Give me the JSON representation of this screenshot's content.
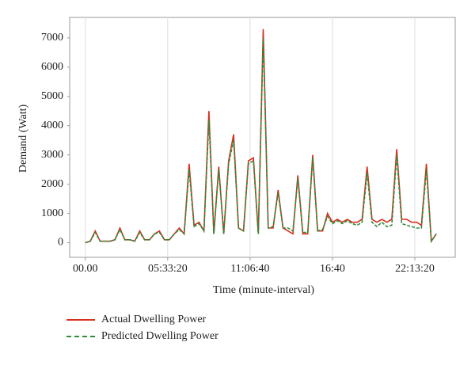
{
  "chart_data": {
    "type": "line",
    "x_label": "Time (minute-interval)",
    "y_label": "Demand (Watt)",
    "x": [
      0,
      1200,
      2400,
      3600,
      4800,
      6000,
      7200,
      8400,
      9600,
      10800,
      12000,
      13200,
      14400,
      15600,
      16800,
      18000,
      19200,
      20400,
      21600,
      22800,
      24000,
      25200,
      26400,
      27600,
      28800,
      30000,
      31200,
      32400,
      33600,
      34800,
      36000,
      37200,
      38400,
      39600,
      40800,
      42000,
      43200,
      44400,
      45600,
      46800,
      48000,
      49200,
      50400,
      51600,
      52800,
      54000,
      55200,
      56400,
      57600,
      58800,
      60000,
      61200,
      62400,
      63600,
      64800,
      66000,
      67200,
      68400,
      69600,
      70800,
      72000,
      73200,
      74400,
      75600,
      76800,
      78000,
      79200,
      80400,
      81600,
      82800,
      84000,
      85200
    ],
    "series": [
      {
        "name": "Actual Dwelling Power",
        "color": "#d7301f",
        "linestyle": "solid",
        "values": [
          0,
          50,
          400,
          50,
          50,
          50,
          100,
          500,
          100,
          100,
          50,
          400,
          100,
          100,
          300,
          400,
          100,
          100,
          300,
          500,
          300,
          2700,
          600,
          700,
          400,
          4500,
          300,
          2600,
          300,
          2800,
          3700,
          500,
          400,
          2800,
          2900,
          300,
          7300,
          500,
          500,
          1800,
          500,
          400,
          300,
          2300,
          300,
          300,
          3000,
          400,
          400,
          1000,
          700,
          800,
          700,
          800,
          700,
          700,
          800,
          2600,
          800,
          700,
          800,
          700,
          800,
          3200,
          800,
          800,
          700,
          700,
          600,
          2700,
          50,
          300
        ]
      },
      {
        "name": "Predicted Dwelling Power",
        "color": "#2e8b3a",
        "linestyle": "dashed",
        "values": [
          0,
          50,
          350,
          50,
          50,
          50,
          100,
          450,
          100,
          100,
          50,
          350,
          100,
          100,
          300,
          350,
          100,
          100,
          300,
          450,
          300,
          2500,
          550,
          650,
          400,
          4200,
          300,
          2500,
          300,
          2700,
          3500,
          500,
          400,
          2700,
          2800,
          300,
          7000,
          500,
          550,
          1700,
          500,
          500,
          400,
          2200,
          350,
          350,
          2900,
          400,
          450,
          900,
          650,
          750,
          650,
          750,
          650,
          600,
          700,
          2400,
          700,
          550,
          700,
          550,
          600,
          3000,
          650,
          600,
          550,
          500,
          500,
          2500,
          50,
          300
        ]
      }
    ],
    "xlim": [
      -3800,
      89800
    ],
    "ylim": [
      -500,
      7700
    ],
    "xticks": [
      {
        "value": 0,
        "label": "00.00"
      },
      {
        "value": 20000,
        "label": "05:33:20"
      },
      {
        "value": 40000,
        "label": "11:06:40"
      },
      {
        "value": 60000,
        "label": "16:40"
      },
      {
        "value": 80000,
        "label": "22:13:20"
      }
    ],
    "yticks": [
      0,
      1000,
      2000,
      3000,
      4000,
      5000,
      6000,
      7000
    ],
    "grid": "x"
  }
}
